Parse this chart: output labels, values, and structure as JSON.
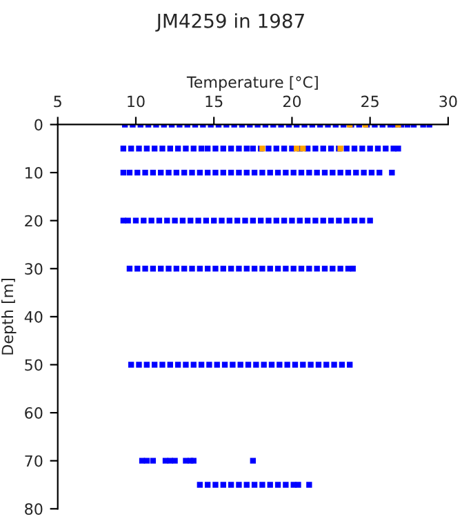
{
  "chart_data": {
    "type": "scatter",
    "title": "JM4259 in 1987",
    "xlabel": "Temperature [°C]",
    "ylabel": "Depth [m]",
    "xlim": [
      5,
      30
    ],
    "xticks": [
      5,
      10,
      15,
      20,
      25,
      30
    ],
    "ylim": [
      80,
      0
    ],
    "yticks": [
      0,
      10,
      20,
      30,
      40,
      50,
      60,
      70,
      80
    ],
    "grid": false,
    "legend": false,
    "marker": "square",
    "series": [
      {
        "color": "#0000ff",
        "x": [
          9.3,
          9.8,
          10.3,
          10.8,
          11.3,
          11.8,
          12.3,
          12.8,
          13.3,
          13.8,
          14.3,
          14.8,
          15.3,
          15.8,
          16.3,
          16.8,
          17.3,
          17.8,
          18.3,
          18.8,
          19.3,
          19.8,
          20.3,
          20.8,
          21.3,
          21.8,
          22.3,
          22.8,
          23.3,
          23.8,
          24.3,
          24.8,
          25.3,
          25.8,
          26.3,
          26.6,
          27.0,
          27.4,
          27.8,
          28.4,
          28.8,
          9.2,
          9.7,
          10.2,
          10.7,
          11.2,
          11.7,
          12.2,
          12.7,
          13.2,
          13.7,
          14.2,
          14.6,
          15.1,
          15.6,
          16.1,
          16.6,
          17.1,
          17.5,
          18.0,
          18.5,
          19.0,
          19.5,
          20.0,
          20.5,
          21.0,
          21.5,
          22.0,
          22.5,
          23.0,
          23.5,
          24.0,
          24.5,
          25.0,
          25.5,
          26.0,
          26.5,
          26.8,
          9.2,
          9.6,
          10.1,
          10.6,
          11.1,
          11.6,
          12.1,
          12.6,
          13.1,
          13.6,
          14.1,
          14.6,
          15.1,
          15.6,
          16.1,
          16.6,
          17.1,
          17.6,
          18.1,
          18.6,
          19.1,
          19.6,
          20.1,
          20.6,
          21.1,
          21.6,
          22.1,
          22.6,
          23.1,
          23.6,
          24.1,
          24.6,
          25.1,
          25.6,
          26.4,
          9.2,
          9.5,
          10.0,
          10.5,
          11.0,
          11.5,
          12.0,
          12.5,
          13.0,
          13.5,
          14.0,
          14.5,
          15.0,
          15.5,
          16.0,
          16.5,
          17.0,
          17.5,
          18.0,
          18.5,
          19.0,
          19.5,
          20.0,
          20.5,
          21.0,
          21.5,
          22.0,
          22.5,
          23.0,
          23.5,
          24.0,
          24.5,
          25.0,
          9.6,
          10.1,
          10.6,
          11.1,
          11.6,
          12.1,
          12.6,
          13.1,
          13.6,
          14.1,
          14.6,
          15.1,
          15.6,
          16.1,
          16.6,
          17.1,
          17.6,
          18.1,
          18.6,
          19.1,
          19.6,
          20.1,
          20.6,
          21.1,
          21.6,
          22.1,
          22.6,
          23.1,
          23.6,
          23.9,
          9.7,
          10.2,
          10.7,
          11.2,
          11.7,
          12.2,
          12.7,
          13.2,
          13.7,
          14.2,
          14.7,
          15.2,
          15.7,
          16.2,
          16.7,
          17.2,
          17.7,
          18.2,
          18.7,
          19.2,
          19.7,
          20.2,
          20.7,
          21.2,
          21.7,
          22.2,
          22.7,
          23.2,
          23.7,
          10.4,
          10.7,
          11.1,
          11.9,
          12.2,
          12.5,
          13.2,
          13.5,
          13.7,
          17.5,
          14.1,
          14.6,
          15.1,
          15.6,
          16.1,
          16.6,
          17.1,
          17.6,
          18.1,
          18.6,
          19.1,
          19.6,
          20.1,
          20.4,
          21.1
        ],
        "values": [
          0,
          0,
          0,
          0,
          0,
          0,
          0,
          0,
          0,
          0,
          0,
          0,
          0,
          0,
          0,
          0,
          0,
          0,
          0,
          0,
          0,
          0,
          0,
          0,
          0,
          0,
          0,
          0,
          0,
          0,
          0,
          0,
          0,
          0,
          0,
          0,
          0,
          0,
          0,
          0,
          0,
          5,
          5,
          5,
          5,
          5,
          5,
          5,
          5,
          5,
          5,
          5,
          5,
          5,
          5,
          5,
          5,
          5,
          5,
          5,
          5,
          5,
          5,
          5,
          5,
          5,
          5,
          5,
          5,
          5,
          5,
          5,
          5,
          5,
          5,
          5,
          5,
          5,
          10,
          10,
          10,
          10,
          10,
          10,
          10,
          10,
          10,
          10,
          10,
          10,
          10,
          10,
          10,
          10,
          10,
          10,
          10,
          10,
          10,
          10,
          10,
          10,
          10,
          10,
          10,
          10,
          10,
          10,
          10,
          10,
          10,
          10,
          10,
          20,
          20,
          20,
          20,
          20,
          20,
          20,
          20,
          20,
          20,
          20,
          20,
          20,
          20,
          20,
          20,
          20,
          20,
          20,
          20,
          20,
          20,
          20,
          20,
          20,
          20,
          20,
          20,
          20,
          20,
          20,
          20,
          20,
          30,
          30,
          30,
          30,
          30,
          30,
          30,
          30,
          30,
          30,
          30,
          30,
          30,
          30,
          30,
          30,
          30,
          30,
          30,
          30,
          30,
          30,
          30,
          30,
          30,
          30,
          30,
          30,
          30,
          30,
          50,
          50,
          50,
          50,
          50,
          50,
          50,
          50,
          50,
          50,
          50,
          50,
          50,
          50,
          50,
          50,
          50,
          50,
          50,
          50,
          50,
          50,
          50,
          50,
          50,
          50,
          50,
          50,
          50,
          70,
          70,
          70,
          70,
          70,
          70,
          70,
          70,
          70,
          70,
          75,
          75,
          75,
          75,
          75,
          75,
          75,
          75,
          75,
          75,
          75,
          75,
          75,
          75,
          75
        ]
      },
      {
        "color": "#ffa500",
        "x": [
          23.7,
          24.7,
          26.8,
          18.1,
          20.3,
          20.7,
          23.1
        ],
        "values": [
          0,
          0,
          0,
          5,
          5,
          5,
          5
        ]
      }
    ]
  }
}
